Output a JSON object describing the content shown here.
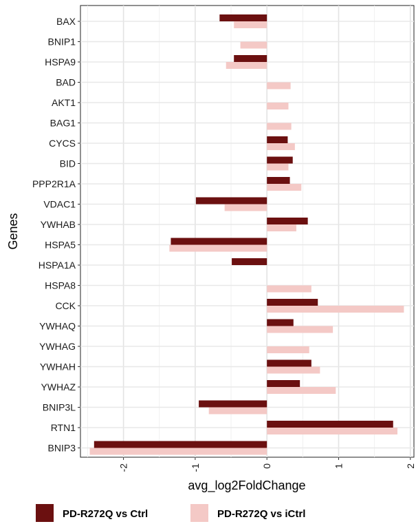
{
  "chart_data": {
    "type": "bar",
    "orientation": "horizontal",
    "title": "",
    "xlabel": "avg_log2FoldChange",
    "ylabel": "Genes",
    "xlim": [
      -2.6,
      2.05
    ],
    "xticks": [
      -2,
      -1,
      0,
      1,
      2
    ],
    "xtick_labels": [
      "-2",
      "-1",
      "0",
      "1",
      "2"
    ],
    "grid": true,
    "legend_position": "bottom",
    "categories": [
      "BAX",
      "BNIP1",
      "HSPA9",
      "BAD",
      "AKT1",
      "BAG1",
      "CYCS",
      "BID",
      "PPP2R1A",
      "VDAC1",
      "YWHAB",
      "HSPA5",
      "HSPA1A",
      "HSPA8",
      "CCK",
      "YWHAQ",
      "YWHAG",
      "YWHAH",
      "YWHAZ",
      "BNIP3L",
      "RTN1",
      "BNIP3"
    ],
    "series": [
      {
        "name": "PD-R272Q vs Ctrl",
        "color": "#6b1010",
        "values": [
          -0.66,
          null,
          -0.46,
          null,
          null,
          null,
          0.29,
          0.36,
          0.32,
          -0.99,
          0.57,
          -1.34,
          -0.49,
          null,
          0.71,
          0.37,
          null,
          0.62,
          0.46,
          -0.95,
          1.76,
          -2.41
        ]
      },
      {
        "name": "PD-R272Q vs iCtrl",
        "color": "#f4c9c6",
        "values": [
          -0.46,
          -0.37,
          -0.57,
          0.33,
          0.3,
          0.34,
          0.39,
          0.3,
          0.48,
          -0.59,
          0.41,
          -1.36,
          null,
          0.62,
          1.91,
          0.92,
          0.59,
          0.74,
          0.96,
          -0.81,
          1.82,
          -2.47
        ]
      }
    ]
  }
}
